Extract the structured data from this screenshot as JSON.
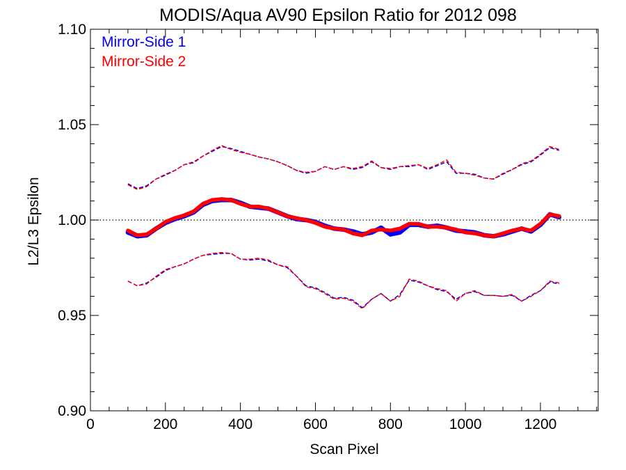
{
  "chart_data": {
    "type": "line",
    "title": "MODIS/Aqua AV90 Epsilon Ratio for 2012 098",
    "xlabel": "Scan Pixel",
    "ylabel": "L2/L3 Epsilon",
    "xlim": [
      0,
      1354
    ],
    "ylim": [
      0.9,
      1.1
    ],
    "x_ticks": [
      0,
      200,
      400,
      600,
      800,
      1000,
      1200
    ],
    "x_tick_labels": [
      "0",
      "200",
      "400",
      "600",
      "800",
      "1000",
      "1200"
    ],
    "y_ticks": [
      0.9,
      0.95,
      1.0,
      1.05,
      1.1
    ],
    "y_tick_labels": [
      "0.90",
      "0.95",
      "1.00",
      "1.05",
      "1.10"
    ],
    "reference_line": {
      "y": 1.0,
      "style": "dotted",
      "color": "#000000"
    },
    "legend": {
      "placement": "top-left"
    },
    "x": [
      100,
      125,
      150,
      175,
      200,
      225,
      250,
      275,
      300,
      325,
      350,
      375,
      400,
      425,
      450,
      475,
      500,
      525,
      550,
      575,
      600,
      625,
      650,
      675,
      700,
      725,
      750,
      775,
      800,
      825,
      850,
      875,
      900,
      925,
      950,
      975,
      1000,
      1025,
      1050,
      1075,
      1100,
      1125,
      1150,
      1175,
      1200,
      1225,
      1250
    ],
    "series": [
      {
        "name": "Mirror-Side 1",
        "color": "#0000ff",
        "mean": [
          0.9935,
          0.9915,
          0.992,
          0.9955,
          0.9985,
          1.0005,
          1.002,
          1.004,
          1.008,
          1.01,
          1.0105,
          1.0105,
          1.009,
          1.007,
          1.0065,
          1.006,
          1.004,
          1.002,
          1.0005,
          1.0,
          0.999,
          0.997,
          0.9955,
          0.995,
          0.994,
          0.9925,
          0.9935,
          0.996,
          0.9925,
          0.9935,
          0.9975,
          0.9975,
          0.9965,
          0.997,
          0.996,
          0.9945,
          0.994,
          0.9935,
          0.992,
          0.9915,
          0.9925,
          0.994,
          0.9955,
          0.994,
          0.9975,
          1.003,
          1.0015
        ],
        "upper": [
          1.019,
          1.0165,
          1.018,
          1.0215,
          1.0235,
          1.026,
          1.029,
          1.03,
          1.0335,
          1.036,
          1.0385,
          1.0375,
          1.036,
          1.0345,
          1.033,
          1.032,
          1.0305,
          1.0285,
          1.026,
          1.0245,
          1.0255,
          1.028,
          1.0265,
          1.028,
          1.0265,
          1.0275,
          1.0305,
          1.0275,
          1.0265,
          1.028,
          1.028,
          1.029,
          1.0265,
          1.0285,
          1.0305,
          1.0245,
          1.0245,
          1.024,
          1.022,
          1.0215,
          1.024,
          1.0265,
          1.029,
          1.0305,
          1.034,
          1.038,
          1.0365
        ],
        "lower": [
          0.968,
          0.9655,
          0.967,
          0.97,
          0.9735,
          0.9755,
          0.977,
          0.9795,
          0.9815,
          0.982,
          0.9825,
          0.9825,
          0.9795,
          0.979,
          0.9795,
          0.9785,
          0.9765,
          0.975,
          0.9705,
          0.9655,
          0.9645,
          0.962,
          0.959,
          0.9595,
          0.958,
          0.954,
          0.9585,
          0.9615,
          0.9575,
          0.961,
          0.9685,
          0.9675,
          0.9655,
          0.9635,
          0.9625,
          0.9585,
          0.9615,
          0.9625,
          0.9605,
          0.9605,
          0.96,
          0.9605,
          0.9575,
          0.9605,
          0.963,
          0.9675,
          0.9665
        ]
      },
      {
        "name": "Mirror-Side 2",
        "color": "#ff0000",
        "mean": [
          0.9945,
          0.992,
          0.9925,
          0.9955,
          0.999,
          1.001,
          1.0025,
          1.0045,
          1.0085,
          1.0105,
          1.011,
          1.0105,
          1.0085,
          1.007,
          1.007,
          1.006,
          1.004,
          1.002,
          1.001,
          1.0,
          0.9985,
          0.9965,
          0.9955,
          0.995,
          0.993,
          0.992,
          0.9945,
          0.995,
          0.9945,
          0.9955,
          0.998,
          0.998,
          0.9965,
          0.9965,
          0.996,
          0.995,
          0.9935,
          0.993,
          0.992,
          0.9915,
          0.993,
          0.9945,
          0.9955,
          0.9945,
          0.998,
          1.003,
          1.002
        ],
        "upper": [
          1.0185,
          1.016,
          1.0175,
          1.0215,
          1.024,
          1.026,
          1.029,
          1.0305,
          1.0335,
          1.0365,
          1.039,
          1.037,
          1.0355,
          1.0345,
          1.033,
          1.032,
          1.0305,
          1.0285,
          1.026,
          1.025,
          1.0255,
          1.028,
          1.0265,
          1.028,
          1.027,
          1.028,
          1.031,
          1.0275,
          1.027,
          1.028,
          1.0285,
          1.029,
          1.027,
          1.029,
          1.0315,
          1.025,
          1.0245,
          1.0235,
          1.022,
          1.0215,
          1.0245,
          1.0265,
          1.0295,
          1.031,
          1.0345,
          1.0385,
          1.037
        ],
        "lower": [
          0.968,
          0.9655,
          0.9665,
          0.9705,
          0.974,
          0.9755,
          0.977,
          0.9795,
          0.9815,
          0.9825,
          0.983,
          0.9825,
          0.9795,
          0.9795,
          0.98,
          0.979,
          0.9765,
          0.9755,
          0.9705,
          0.965,
          0.964,
          0.9615,
          0.9585,
          0.959,
          0.9575,
          0.9535,
          0.9585,
          0.9615,
          0.9575,
          0.96,
          0.969,
          0.968,
          0.9655,
          0.964,
          0.963,
          0.9575,
          0.9615,
          0.963,
          0.9605,
          0.9605,
          0.96,
          0.961,
          0.9575,
          0.96,
          0.963,
          0.968,
          0.967
        ]
      }
    ]
  }
}
